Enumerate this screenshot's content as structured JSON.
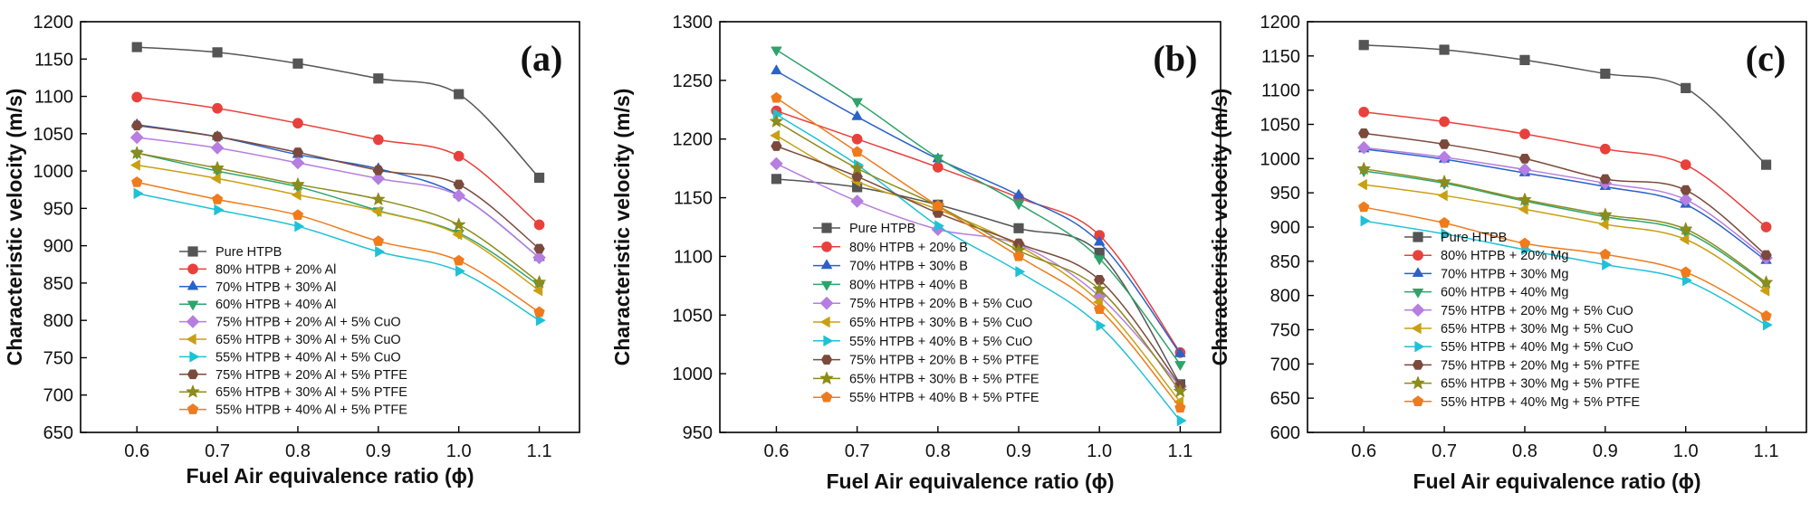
{
  "chart_data": [
    {
      "type": "line",
      "panel_label": "(a)",
      "xlabel": "Fuel Air equivalence ratio (ϕ)",
      "ylabel": "Characteristic velocity (m/s)",
      "x": [
        0.6,
        0.7,
        0.8,
        0.9,
        1.0,
        1.1
      ],
      "xticks": [
        "0.6",
        "0.7",
        "0.8",
        "0.9",
        "1.0",
        "1.1"
      ],
      "xlim": [
        0.53,
        1.15
      ],
      "ylim": [
        650,
        1200
      ],
      "yticks": [
        650,
        700,
        750,
        800,
        850,
        900,
        950,
        1000,
        1050,
        1100,
        1150,
        1200
      ],
      "legend_position": "lower-left",
      "series": [
        {
          "name": "Pure HTPB",
          "color": "#555555",
          "marker": "square",
          "values": [
            1166,
            1159,
            1144,
            1124,
            1103,
            991
          ]
        },
        {
          "name": "80% HTPB + 20% Al",
          "color": "#e8413c",
          "marker": "circle",
          "values": [
            1099,
            1084,
            1064,
            1042,
            1020,
            928
          ]
        },
        {
          "name": "70% HTPB + 30% Al",
          "color": "#2a62c9",
          "marker": "triangle-up",
          "values": [
            1062,
            1046,
            1022,
            1003,
            968,
            884
          ]
        },
        {
          "name": "60% HTPB + 40% Al",
          "color": "#2fa36b",
          "marker": "triangle-down",
          "values": [
            1024,
            1000,
            979,
            947,
            917,
            847
          ]
        },
        {
          "name": "75% HTPB + 20% Al + 5% CuO",
          "color": "#b57ee0",
          "marker": "diamond",
          "values": [
            1045,
            1031,
            1011,
            990,
            967,
            884
          ]
        },
        {
          "name": "65% HTPB + 30% Al + 5% CuO",
          "color": "#c9a012",
          "marker": "triangle-left",
          "values": [
            1008,
            990,
            968,
            946,
            915,
            840
          ]
        },
        {
          "name": "55% HTPB + 40% Al + 5% CuO",
          "color": "#1fc1d6",
          "marker": "triangle-right",
          "values": [
            970,
            948,
            926,
            892,
            866,
            800
          ]
        },
        {
          "name": "75% HTPB + 20% Al + 5% PTFE",
          "color": "#7b4a3c",
          "marker": "hexagon",
          "values": [
            1061,
            1046,
            1025,
            1001,
            982,
            896
          ]
        },
        {
          "name": "65% HTPB + 30% Al + 5% PTFE",
          "color": "#8d8b1c",
          "marker": "star",
          "values": [
            1024,
            1004,
            982,
            962,
            928,
            851
          ]
        },
        {
          "name": "55% HTPB + 40% Al + 5% PTFE",
          "color": "#f07b1c",
          "marker": "pentagon",
          "values": [
            985,
            962,
            941,
            906,
            880,
            811
          ]
        }
      ]
    },
    {
      "type": "line",
      "panel_label": "(b)",
      "xlabel": "Fuel Air equivalence ratio (ϕ)",
      "ylabel": "Characteristic velocity (m/s)",
      "x": [
        0.6,
        0.7,
        0.8,
        0.9,
        1.0,
        1.1
      ],
      "xticks": [
        "0.6",
        "0.7",
        "0.8",
        "0.9",
        "1.0",
        "1.1"
      ],
      "xlim": [
        0.53,
        1.15
      ],
      "ylim": [
        950,
        1300
      ],
      "yticks": [
        950,
        1000,
        1050,
        1100,
        1150,
        1200,
        1250,
        1300
      ],
      "legend_position": "lower-left",
      "series": [
        {
          "name": "Pure HTPB",
          "color": "#555555",
          "marker": "square",
          "values": [
            1166,
            1159,
            1144,
            1124,
            1103,
            991
          ]
        },
        {
          "name": "80% HTPB + 20% B",
          "color": "#e8413c",
          "marker": "circle",
          "values": [
            1224,
            1200,
            1176,
            1150,
            1118,
            1018
          ]
        },
        {
          "name": "70% HTPB + 30% B",
          "color": "#2a62c9",
          "marker": "triangle-up",
          "values": [
            1258,
            1219,
            1183,
            1152,
            1112,
            1017
          ]
        },
        {
          "name": "80% HTPB + 40% B",
          "color": "#2fa36b",
          "marker": "triangle-down",
          "values": [
            1276,
            1232,
            1184,
            1145,
            1098,
            1008
          ]
        },
        {
          "name": "75% HTPB + 20% B + 5% CuO",
          "color": "#b57ee0",
          "marker": "diamond",
          "values": [
            1179,
            1147,
            1123,
            1110,
            1066,
            989
          ]
        },
        {
          "name": "65% HTPB + 30% B + 5% CuO",
          "color": "#c9a012",
          "marker": "triangle-left",
          "values": [
            1203,
            1164,
            1140,
            1109,
            1061,
            976
          ]
        },
        {
          "name": "55% HTPB + 40% B + 5% CuO",
          "color": "#1fc1d6",
          "marker": "triangle-right",
          "values": [
            1221,
            1178,
            1126,
            1087,
            1041,
            960
          ]
        },
        {
          "name": "75% HTPB + 20% B + 5% PTFE",
          "color": "#7b4a3c",
          "marker": "hexagon",
          "values": [
            1194,
            1168,
            1137,
            1111,
            1080,
            990
          ]
        },
        {
          "name": "65% HTPB + 30% B + 5% PTFE",
          "color": "#8d8b1c",
          "marker": "star",
          "values": [
            1215,
            1175,
            1143,
            1105,
            1072,
            985
          ]
        },
        {
          "name": "55% HTPB + 40% B + 5% PTFE",
          "color": "#f07b1c",
          "marker": "pentagon",
          "values": [
            1235,
            1189,
            1143,
            1100,
            1055,
            971
          ]
        }
      ]
    },
    {
      "type": "line",
      "panel_label": "(c)",
      "xlabel": "Fuel Air equivalence ratio (ϕ)",
      "ylabel": "Characteristic velocity (m/s)",
      "x": [
        0.6,
        0.7,
        0.8,
        0.9,
        1.0,
        1.1
      ],
      "xticks": [
        "0.6",
        "0.7",
        "0.8",
        "0.9",
        "1.0",
        "1.1"
      ],
      "xlim": [
        0.53,
        1.15
      ],
      "ylim": [
        600,
        1200
      ],
      "yticks": [
        600,
        650,
        700,
        750,
        800,
        850,
        900,
        950,
        1000,
        1050,
        1100,
        1150,
        1200
      ],
      "legend_position": "lower-left",
      "series": [
        {
          "name": "Pure HTPB",
          "color": "#555555",
          "marker": "square",
          "values": [
            1166,
            1159,
            1144,
            1124,
            1103,
            991
          ]
        },
        {
          "name": "80% HTPB + 20% Mg",
          "color": "#e8413c",
          "marker": "circle",
          "values": [
            1068,
            1054,
            1036,
            1014,
            991,
            900
          ]
        },
        {
          "name": "70% HTPB + 30% Mg",
          "color": "#2a62c9",
          "marker": "triangle-up",
          "values": [
            1014,
            999,
            979,
            959,
            933,
            851
          ]
        },
        {
          "name": "60% HTPB + 40% Mg",
          "color": "#2fa36b",
          "marker": "triangle-down",
          "values": [
            982,
            964,
            938,
            915,
            893,
            817
          ]
        },
        {
          "name": "75% HTPB + 20% Mg + 5% CuO",
          "color": "#b57ee0",
          "marker": "diamond",
          "values": [
            1016,
            1002,
            984,
            964,
            940,
            855
          ]
        },
        {
          "name": "65% HTPB + 30% Mg + 5% CuO",
          "color": "#c9a012",
          "marker": "triangle-left",
          "values": [
            962,
            946,
            926,
            904,
            882,
            807
          ]
        },
        {
          "name": "55% HTPB + 40% Mg + 5% CuO",
          "color": "#1fc1d6",
          "marker": "triangle-right",
          "values": [
            909,
            890,
            867,
            845,
            822,
            757
          ]
        },
        {
          "name": "75% HTPB + 20% Mg + 5% PTFE",
          "color": "#7b4a3c",
          "marker": "hexagon",
          "values": [
            1037,
            1021,
            1000,
            970,
            954,
            859
          ]
        },
        {
          "name": "65% HTPB + 30% Mg + 5% PTFE",
          "color": "#8d8b1c",
          "marker": "star",
          "values": [
            985,
            966,
            940,
            918,
            897,
            819
          ]
        },
        {
          "name": "55% HTPB + 40% Mg + 5% PTFE",
          "color": "#f07b1c",
          "marker": "pentagon",
          "values": [
            929,
            906,
            876,
            860,
            834,
            770
          ]
        }
      ]
    }
  ]
}
